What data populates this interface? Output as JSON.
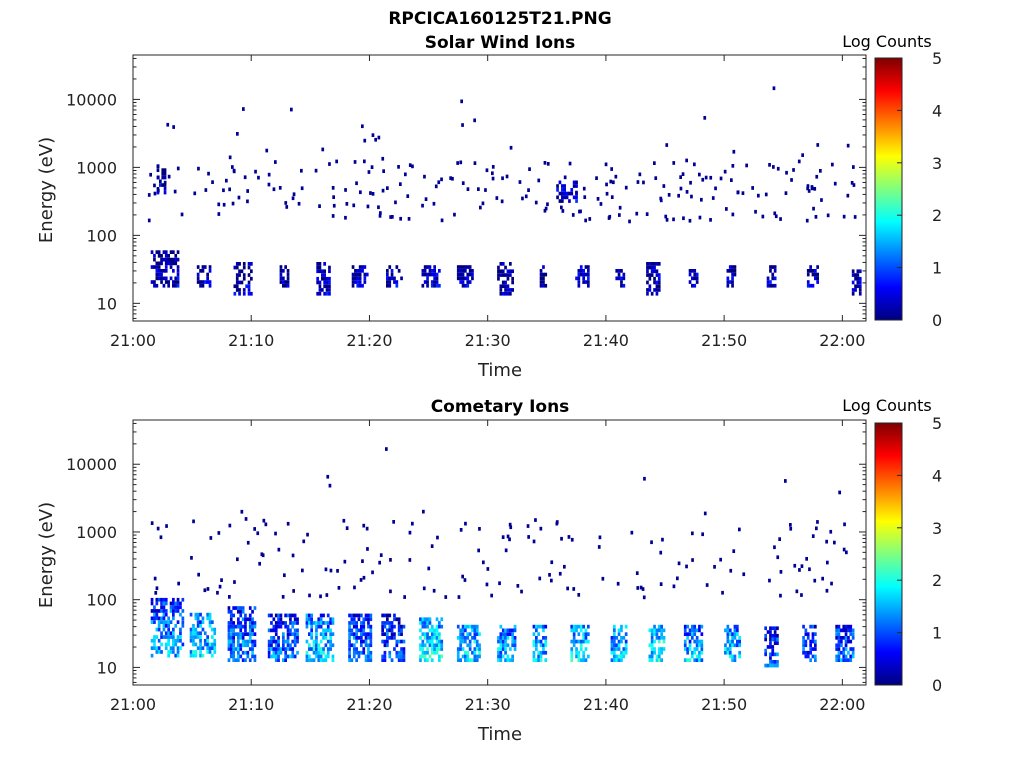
{
  "figure": {
    "title": "RPCICA160125T21.PNG"
  },
  "colors": {
    "colormap": [
      "#00007f",
      "#0000ff",
      "#007fff",
      "#00ffff",
      "#7fff7f",
      "#ffff00",
      "#ff7f00",
      "#ff0000",
      "#7f0000"
    ],
    "axis": "#262626"
  },
  "chart_data": [
    {
      "type": "heatmap",
      "title": "Solar Wind Ions",
      "xlabel": "Time",
      "ylabel": "Energy (eV)",
      "x_ticks": [
        "21:00",
        "21:10",
        "21:20",
        "21:30",
        "21:40",
        "21:50",
        "22:00"
      ],
      "x_tick_minutes": [
        0,
        10,
        20,
        30,
        40,
        50,
        60
      ],
      "xlim_minutes": [
        0,
        62
      ],
      "y_scale": "log",
      "y_ticks": [
        "10",
        "100",
        "1000",
        "10000"
      ],
      "y_tick_values": [
        10,
        100,
        1000,
        10000
      ],
      "ylim": [
        5.5,
        45000
      ],
      "colorbar": {
        "label": "Log Counts",
        "ticks": [
          "0",
          "1",
          "2",
          "3",
          "4",
          "5"
        ],
        "range": [
          0,
          5
        ]
      },
      "clusters": [
        {
          "t_min": 1.5,
          "t_max": 3.8,
          "e_min": 17,
          "e_max": 55,
          "level": 0.3
        },
        {
          "t_min": 5.4,
          "t_max": 6.6,
          "e_min": 17,
          "e_max": 36,
          "level": 0.3
        },
        {
          "t_min": 8.5,
          "t_max": 10.0,
          "e_min": 13,
          "e_max": 36,
          "level": 0.3
        },
        {
          "t_min": 12.4,
          "t_max": 13.0,
          "e_min": 17,
          "e_max": 36,
          "level": 0.3
        },
        {
          "t_min": 15.5,
          "t_max": 16.6,
          "e_min": 13,
          "e_max": 36,
          "level": 0.3
        },
        {
          "t_min": 18.5,
          "t_max": 19.8,
          "e_min": 17,
          "e_max": 36,
          "level": 0.3
        },
        {
          "t_min": 21.4,
          "t_max": 22.6,
          "e_min": 17,
          "e_max": 36,
          "level": 0.3
        },
        {
          "t_min": 24.4,
          "t_max": 25.8,
          "e_min": 17,
          "e_max": 36,
          "level": 0.3
        },
        {
          "t_min": 27.4,
          "t_max": 28.6,
          "e_min": 17,
          "e_max": 36,
          "level": 0.3
        },
        {
          "t_min": 30.8,
          "t_max": 32.0,
          "e_min": 13,
          "e_max": 36,
          "level": 0.3
        },
        {
          "t_min": 34.4,
          "t_max": 35.0,
          "e_min": 17,
          "e_max": 36,
          "level": 0.3
        },
        {
          "t_min": 37.4,
          "t_max": 38.6,
          "e_min": 17,
          "e_max": 36,
          "level": 0.3
        },
        {
          "t_min": 40.8,
          "t_max": 41.6,
          "e_min": 17,
          "e_max": 30,
          "level": 0.3
        },
        {
          "t_min": 43.4,
          "t_max": 44.6,
          "e_min": 13,
          "e_max": 36,
          "level": 0.3
        },
        {
          "t_min": 47.0,
          "t_max": 47.8,
          "e_min": 17,
          "e_max": 30,
          "level": 0.3
        },
        {
          "t_min": 50.2,
          "t_max": 51.0,
          "e_min": 17,
          "e_max": 36,
          "level": 0.3
        },
        {
          "t_min": 53.6,
          "t_max": 54.4,
          "e_min": 17,
          "e_max": 36,
          "level": 0.3
        },
        {
          "t_min": 57.0,
          "t_max": 58.0,
          "e_min": 17,
          "e_max": 36,
          "level": 0.3
        },
        {
          "t_min": 60.8,
          "t_max": 61.6,
          "e_min": 13,
          "e_max": 28,
          "level": 0.3
        },
        {
          "t_min": 2.0,
          "t_max": 2.8,
          "e_min": 400,
          "e_max": 1100,
          "level": 0.3
        },
        {
          "t_min": 35.8,
          "t_max": 37.6,
          "e_min": 300,
          "e_max": 600,
          "level": 0.3
        }
      ],
      "scatter_energy_range": [
        150,
        1200
      ],
      "sparse_counts": 260
    },
    {
      "type": "heatmap",
      "title": "Cometary Ions",
      "xlabel": "Time",
      "ylabel": "Energy (eV)",
      "x_ticks": [
        "21:00",
        "21:10",
        "21:20",
        "21:30",
        "21:40",
        "21:50",
        "22:00"
      ],
      "x_tick_minutes": [
        0,
        10,
        20,
        30,
        40,
        50,
        60
      ],
      "xlim_minutes": [
        0,
        62
      ],
      "y_scale": "log",
      "y_ticks": [
        "10",
        "100",
        "1000",
        "10000"
      ],
      "y_tick_values": [
        10,
        100,
        1000,
        10000
      ],
      "ylim": [
        5.5,
        45000
      ],
      "colorbar": {
        "label": "Log Counts",
        "ticks": [
          "0",
          "1",
          "2",
          "3",
          "4",
          "5"
        ],
        "range": [
          0,
          5
        ]
      },
      "clusters": [
        {
          "t_min": 1.5,
          "t_max": 4.2,
          "e_min": 14,
          "e_max": 100,
          "level": 1.4
        },
        {
          "t_min": 4.8,
          "t_max": 7.0,
          "e_min": 14,
          "e_max": 60,
          "level": 1.6
        },
        {
          "t_min": 8.0,
          "t_max": 10.2,
          "e_min": 12,
          "e_max": 80,
          "level": 1.3
        },
        {
          "t_min": 11.4,
          "t_max": 13.8,
          "e_min": 12,
          "e_max": 60,
          "level": 1.2
        },
        {
          "t_min": 14.6,
          "t_max": 16.8,
          "e_min": 12,
          "e_max": 60,
          "level": 1.6
        },
        {
          "t_min": 18.2,
          "t_max": 20.0,
          "e_min": 12,
          "e_max": 60,
          "level": 1.2
        },
        {
          "t_min": 21.0,
          "t_max": 22.8,
          "e_min": 12,
          "e_max": 60,
          "level": 1.1
        },
        {
          "t_min": 24.2,
          "t_max": 26.0,
          "e_min": 12,
          "e_max": 50,
          "level": 1.8
        },
        {
          "t_min": 27.4,
          "t_max": 29.2,
          "e_min": 12,
          "e_max": 40,
          "level": 1.7
        },
        {
          "t_min": 30.8,
          "t_max": 32.2,
          "e_min": 12,
          "e_max": 40,
          "level": 1.5
        },
        {
          "t_min": 33.8,
          "t_max": 35.0,
          "e_min": 12,
          "e_max": 40,
          "level": 1.6
        },
        {
          "t_min": 37.0,
          "t_max": 38.6,
          "e_min": 12,
          "e_max": 40,
          "level": 1.7
        },
        {
          "t_min": 40.4,
          "t_max": 41.8,
          "e_min": 12,
          "e_max": 40,
          "level": 1.6
        },
        {
          "t_min": 43.6,
          "t_max": 45.0,
          "e_min": 12,
          "e_max": 40,
          "level": 1.8
        },
        {
          "t_min": 46.6,
          "t_max": 48.2,
          "e_min": 12,
          "e_max": 40,
          "level": 1.5
        },
        {
          "t_min": 50.0,
          "t_max": 51.4,
          "e_min": 12,
          "e_max": 40,
          "level": 1.6
        },
        {
          "t_min": 53.4,
          "t_max": 54.6,
          "e_min": 10,
          "e_max": 40,
          "level": 1.0
        },
        {
          "t_min": 56.6,
          "t_max": 57.8,
          "e_min": 12,
          "e_max": 40,
          "level": 1.0
        },
        {
          "t_min": 59.4,
          "t_max": 61.0,
          "e_min": 12,
          "e_max": 40,
          "level": 1.1
        }
      ],
      "scatter_energy_range": [
        100,
        1500
      ],
      "sparse_counts": 180
    }
  ]
}
